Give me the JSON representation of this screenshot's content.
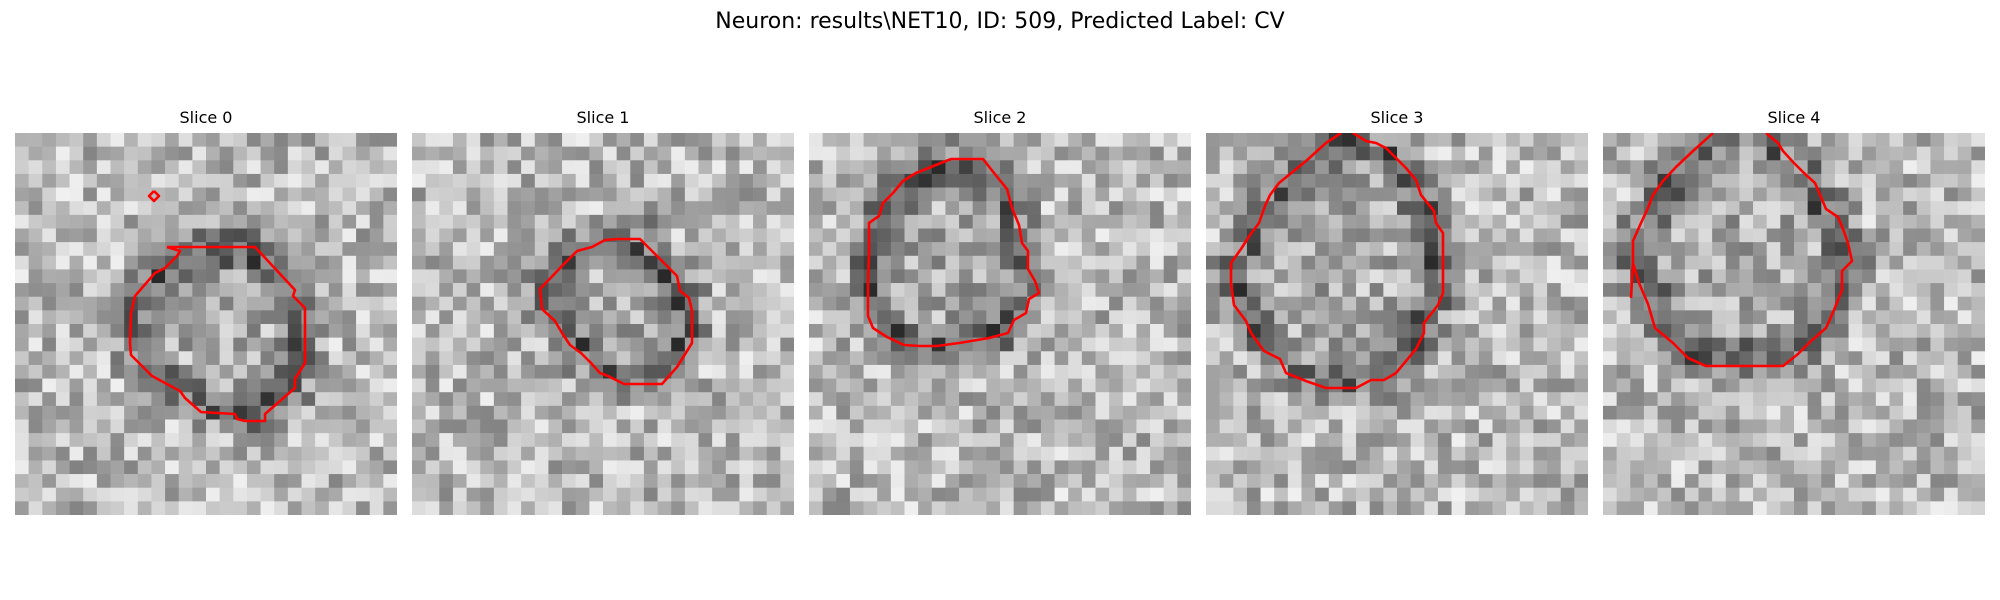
{
  "figure": {
    "title": "Neuron: results\\NET10, ID: 509, Predicted Label: CV",
    "contour_color": "#ff0000",
    "colormap": "grayscale",
    "panels": [
      {
        "title": "Slice 0"
      },
      {
        "title": "Slice 1"
      },
      {
        "title": "Slice 2"
      },
      {
        "title": "Slice 3"
      },
      {
        "title": "Slice 4"
      }
    ]
  }
}
